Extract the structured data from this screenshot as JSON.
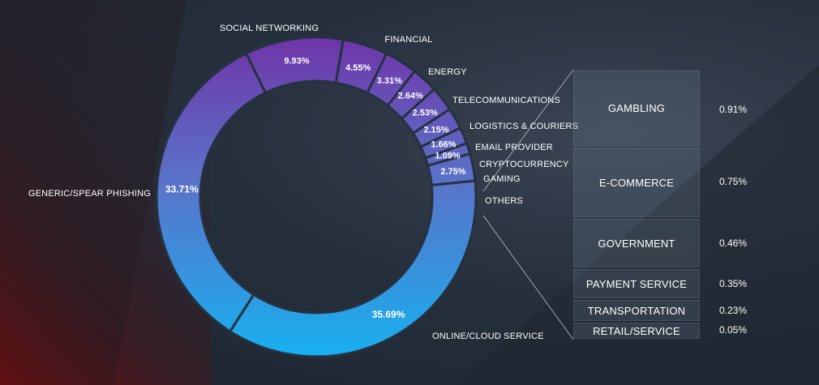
{
  "chart_data": [
    {
      "type": "pie",
      "variant": "donut",
      "categories": [
        "SOCIAL NETWORKING",
        "FINANCIAL",
        "ENERGY",
        "TELECOMMUNICATIONS",
        "LOGISTICS & COURIERS",
        "EMAIL PROVIDER",
        "CRYPTOCURRENCY",
        "GAMING",
        "OTHERS",
        "ONLINE/CLOUD SERVICE",
        "GENERIC/SPEAR PHISHING"
      ],
      "values": [
        9.93,
        4.55,
        3.31,
        2.64,
        2.53,
        2.15,
        1.66,
        1.09,
        2.75,
        35.69,
        33.71
      ],
      "value_labels": [
        "9.93%",
        "4.55%",
        "3.31%",
        "2.64%",
        "2.53%",
        "2.15%",
        "1.66%",
        "1.09%",
        "2.75%",
        "35.69%",
        "33.71%"
      ],
      "color_top": "#6f35a8",
      "color_mid": "#5a73c9",
      "color_bottom": "#17b0f0"
    },
    {
      "type": "table",
      "breakdown_of": "OTHERS",
      "rows": [
        {
          "label": "GAMBLING",
          "value": "0.91%"
        },
        {
          "label": "E-COMMERCE",
          "value": "0.75%"
        },
        {
          "label": "GOVERNMENT",
          "value": "0.46%"
        },
        {
          "label": "PAYMENT SERVICE",
          "value": "0.35%"
        },
        {
          "label": "TRANSPORTATION",
          "value": "0.23%"
        },
        {
          "label": "RETAIL/SERVICE",
          "value": "0.05%"
        }
      ]
    }
  ]
}
